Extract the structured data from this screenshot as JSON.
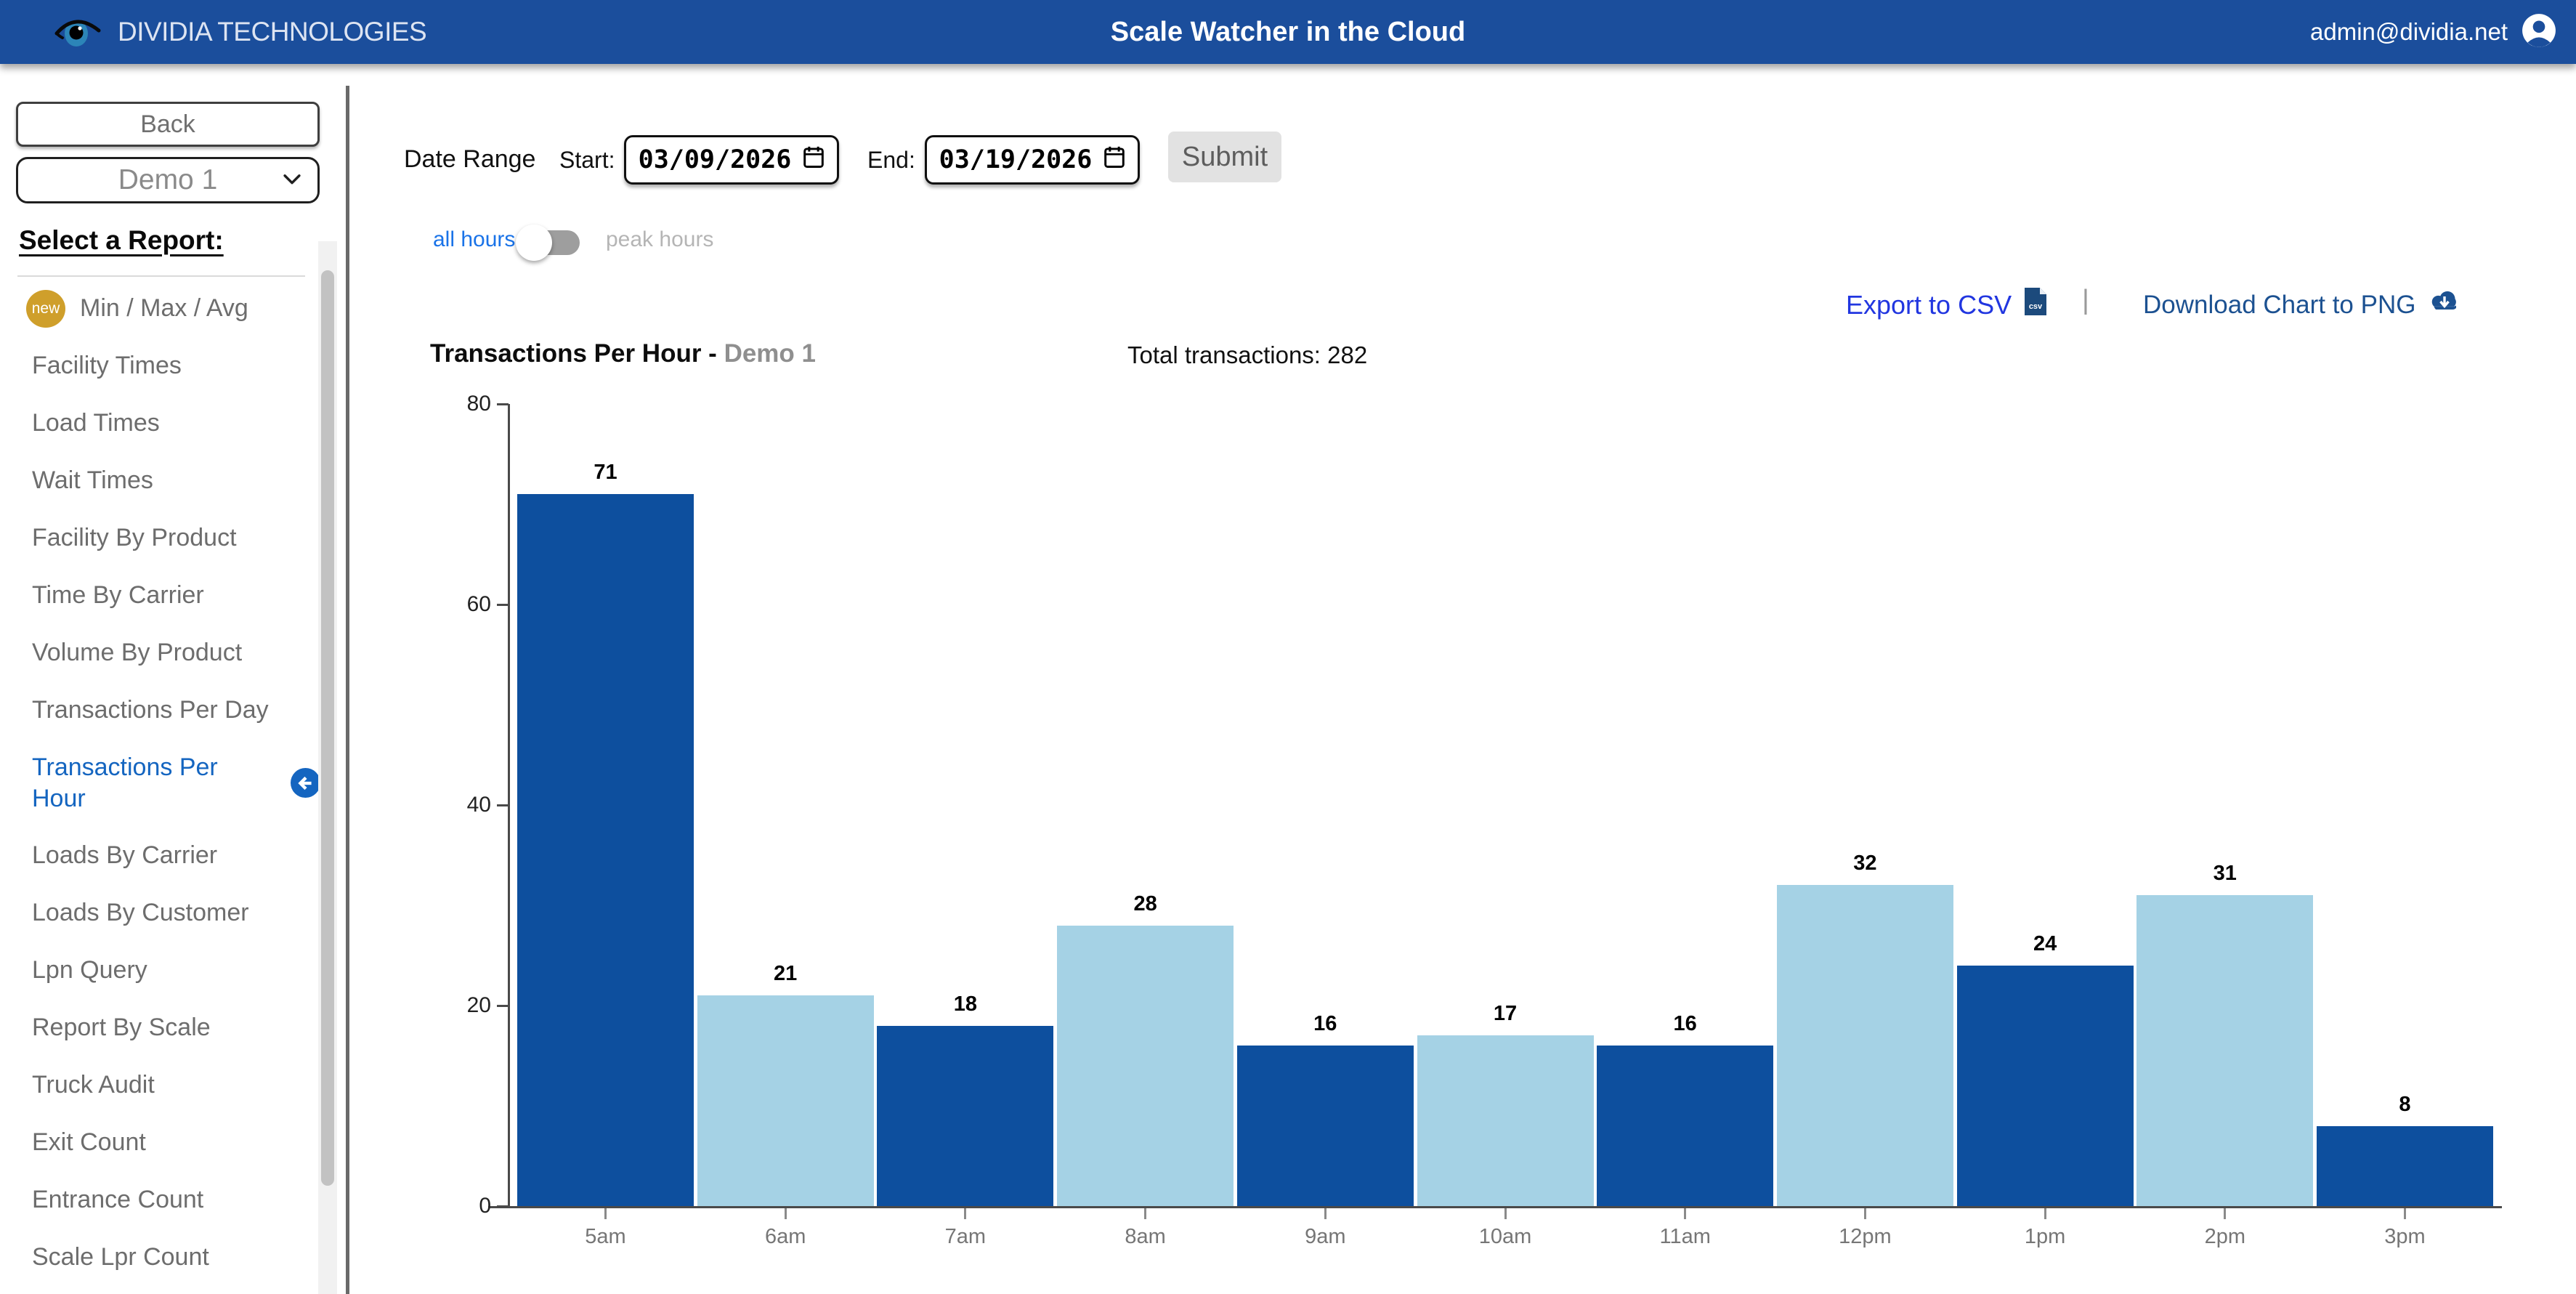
{
  "header": {
    "brand": "DIVIDIA TECHNOLOGIES",
    "title": "Scale Watcher in the Cloud",
    "user_email": "admin@dividia.net",
    "bg_color": "#1b4e9c"
  },
  "sidebar": {
    "back_label": "Back",
    "site_select_value": "Demo 1",
    "heading": "Select a Report:",
    "items": [
      {
        "label": "Min / Max / Avg",
        "badge": "new",
        "active": false
      },
      {
        "label": "Facility Times",
        "active": false
      },
      {
        "label": "Load Times",
        "active": false
      },
      {
        "label": "Wait Times",
        "active": false
      },
      {
        "label": "Facility By Product",
        "active": false
      },
      {
        "label": "Time By Carrier",
        "active": false
      },
      {
        "label": "Volume By Product",
        "active": false
      },
      {
        "label": "Transactions Per Day",
        "active": false
      },
      {
        "label": "Transactions Per Hour",
        "active": true
      },
      {
        "label": "Loads By Carrier",
        "active": false
      },
      {
        "label": "Loads By Customer",
        "active": false
      },
      {
        "label": "Lpn Query",
        "active": false
      },
      {
        "label": "Report By Scale",
        "active": false
      },
      {
        "label": "Truck Audit",
        "active": false
      },
      {
        "label": "Exit Count",
        "active": false
      },
      {
        "label": "Entrance Count",
        "active": false
      },
      {
        "label": "Scale Lpr Count",
        "active": false
      }
    ]
  },
  "controls": {
    "date_range_label": "Date Range",
    "start_label": "Start:",
    "start_value": "03/09/2026",
    "end_label": "End:",
    "end_value": "03/19/2026",
    "submit_label": "Submit",
    "toggle_left_label": "all hours",
    "toggle_right_label": "peak hours",
    "toggle_selected": "all hours"
  },
  "export": {
    "csv_label": "Export to CSV",
    "separator": "|",
    "png_label": "Download Chart to PNG"
  },
  "chart_header": {
    "title": "Transactions Per Hour -",
    "subtitle": "Demo 1",
    "total_label": "Total transactions:",
    "total_value": "282"
  },
  "chart_data": {
    "type": "bar",
    "title": "Transactions Per Hour - Demo 1",
    "categories": [
      "5am",
      "6am",
      "7am",
      "8am",
      "9am",
      "10am",
      "11am",
      "12pm",
      "1pm",
      "2pm",
      "3pm"
    ],
    "values": [
      71,
      21,
      18,
      28,
      16,
      17,
      16,
      32,
      24,
      31,
      8
    ],
    "total": 282,
    "xlabel": "",
    "ylabel": "",
    "ylim": [
      0,
      80
    ],
    "yticks": [
      0,
      20,
      40,
      60,
      80
    ],
    "grid": false,
    "value_labels": true,
    "legend": "none",
    "bar_color_odd": "#0d4f9e",
    "bar_color_even": "#a5d2e5"
  },
  "colors": {
    "dark_bar": "#0d4f9e",
    "light_bar": "#a5d2e5",
    "active_item": "#1465c0",
    "csv_link": "#2136e0",
    "png_link": "#1c5191",
    "badge_gold": "#cf9f2b"
  }
}
